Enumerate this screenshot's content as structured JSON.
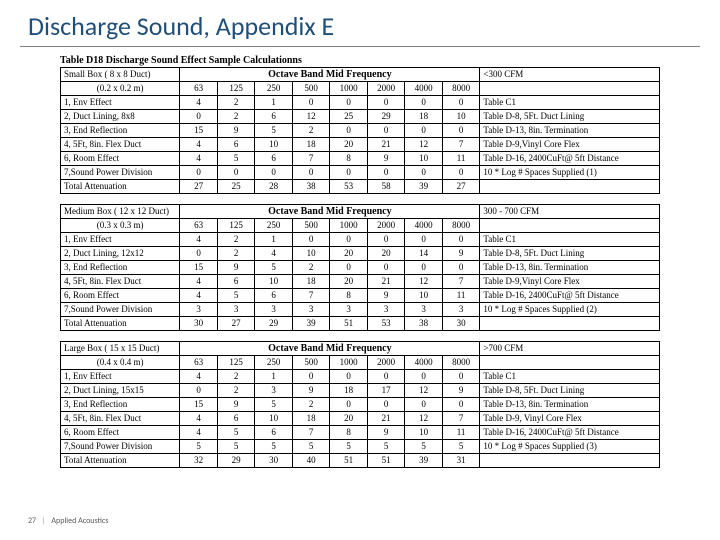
{
  "title": "Discharge Sound, Appendix E",
  "caption": "Table D18   Discharge Sound Effect Sample Calculationns",
  "octave_header": "Octave Band Mid Frequency",
  "freq_cols": [
    "63",
    "125",
    "250",
    "500",
    "1000",
    "2000",
    "4000",
    "8000"
  ],
  "footer": {
    "page": "27",
    "text": "Applied Acoustics"
  },
  "colors": {
    "title": "#1f4e79",
    "rule": "#808080",
    "border": "#000000",
    "footer": "#595959",
    "bg": "#ffffff"
  },
  "blocks": [
    {
      "box_line1": "Small Box ( 8 x 8 Duct)",
      "box_line2": "(0.2 x 0.2 m)",
      "cfm": "<300 CFM",
      "rows": [
        {
          "label": "1, Env Effect",
          "v": [
            4,
            2,
            1,
            0,
            0,
            0,
            0,
            0
          ],
          "ref": "Table C1"
        },
        {
          "label": "2, Duct Lining, 8x8",
          "v": [
            0,
            2,
            6,
            12,
            25,
            29,
            18,
            10
          ],
          "ref": "Table D-8, 5Ft. Duct Lining"
        },
        {
          "label": "3, End Reflection",
          "v": [
            15,
            9,
            5,
            2,
            0,
            0,
            0,
            0
          ],
          "ref": "Table D-13, 8in. Termination"
        },
        {
          "label": "4, 5Ft, 8in. Flex Duct",
          "v": [
            4,
            6,
            10,
            18,
            20,
            21,
            12,
            7
          ],
          "ref": "Table D-9,Vinyl Core Flex"
        },
        {
          "label": "6, Room Effect",
          "v": [
            4,
            5,
            6,
            7,
            8,
            9,
            10,
            11
          ],
          "ref": "Table D-16, 2400CuFt@ 5ft Distance"
        },
        {
          "label": "7,Sound Power Division",
          "v": [
            0,
            0,
            0,
            0,
            0,
            0,
            0,
            0
          ],
          "ref": "10 * Log # Spaces Supplied (1)"
        },
        {
          "label": "Total Attenuation",
          "v": [
            27,
            25,
            28,
            38,
            53,
            58,
            39,
            27
          ],
          "ref": ""
        }
      ]
    },
    {
      "box_line1": "Medium Box ( 12 x 12 Duct)",
      "box_line2": "(0.3 x 0.3 m)",
      "cfm": "300 - 700 CFM",
      "rows": [
        {
          "label": "1, Env Effect",
          "v": [
            4,
            2,
            1,
            0,
            0,
            0,
            0,
            0
          ],
          "ref": "Table C1"
        },
        {
          "label": "2, Duct Lining, 12x12",
          "v": [
            0,
            2,
            4,
            10,
            20,
            20,
            14,
            9
          ],
          "ref": "Table D-8, 5Ft. Duct Lining"
        },
        {
          "label": "3, End Reflection",
          "v": [
            15,
            9,
            5,
            2,
            0,
            0,
            0,
            0
          ],
          "ref": "Table D-13, 8in. Termination"
        },
        {
          "label": "4, 5Ft, 8in. Flex Duct",
          "v": [
            4,
            6,
            10,
            18,
            20,
            21,
            12,
            7
          ],
          "ref": "Table D-9,Vinyl Core Flex"
        },
        {
          "label": "6, Room Effect",
          "v": [
            4,
            5,
            6,
            7,
            8,
            9,
            10,
            11
          ],
          "ref": "Table D-16, 2400CuFt@ 5ft Distance"
        },
        {
          "label": "7,Sound Power Division",
          "v": [
            3,
            3,
            3,
            3,
            3,
            3,
            3,
            3
          ],
          "ref": "10 * Log # Spaces Supplied (2)"
        },
        {
          "label": "Total Attenuation",
          "v": [
            30,
            27,
            29,
            39,
            51,
            53,
            38,
            30
          ],
          "ref": ""
        }
      ]
    },
    {
      "box_line1": "Large Box ( 15 x 15 Duct)",
      "box_line2": "(0.4 x 0.4 m)",
      "cfm": ">700 CFM",
      "rows": [
        {
          "label": "1, Env Effect",
          "v": [
            4,
            2,
            1,
            0,
            0,
            0,
            0,
            0
          ],
          "ref": "Table C1"
        },
        {
          "label": "2, Duct Lining, 15x15",
          "v": [
            0,
            2,
            3,
            9,
            18,
            17,
            12,
            9
          ],
          "ref": "Table D-8, 5Ft. Duct Lining"
        },
        {
          "label": "3, End Reflection",
          "v": [
            15,
            9,
            5,
            2,
            0,
            0,
            0,
            0
          ],
          "ref": "Table D-13, 8in. Termination"
        },
        {
          "label": "4, 5Ft, 8in. Flex Duct",
          "v": [
            4,
            6,
            10,
            18,
            20,
            21,
            12,
            7
          ],
          "ref": "Table D-9, Vinyl Core Flex"
        },
        {
          "label": "6, Room Effect",
          "v": [
            4,
            5,
            6,
            7,
            8,
            9,
            10,
            11
          ],
          "ref": "Table D-16, 2400CuFt@ 5ft Distance"
        },
        {
          "label": "7,Sound Power Division",
          "v": [
            5,
            5,
            5,
            5,
            5,
            5,
            5,
            5
          ],
          "ref": "10 * Log # Spaces Supplied (3)"
        },
        {
          "label": "Total Attenuation",
          "v": [
            32,
            29,
            30,
            40,
            51,
            51,
            39,
            31
          ],
          "ref": ""
        }
      ]
    }
  ]
}
